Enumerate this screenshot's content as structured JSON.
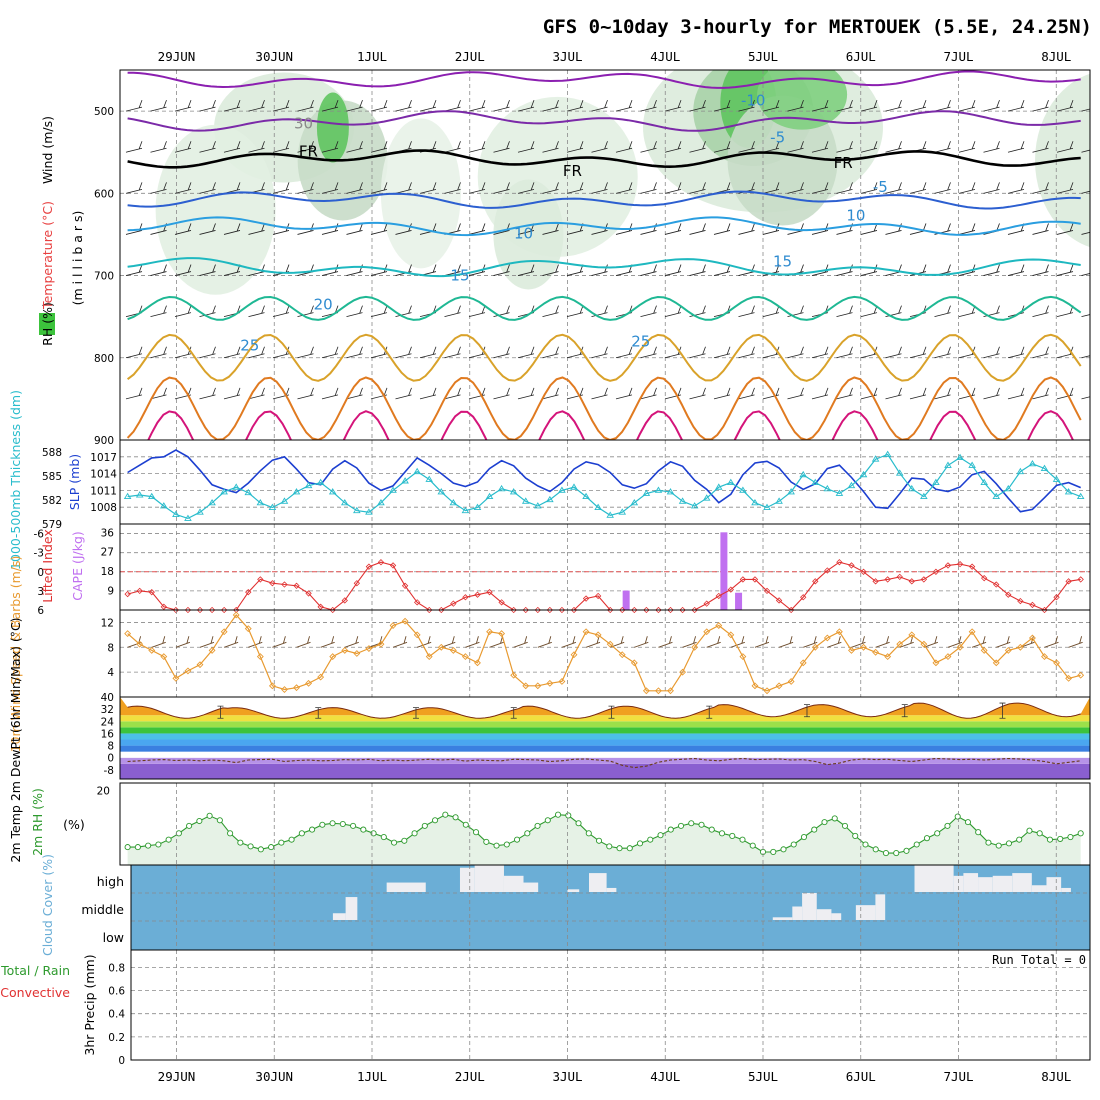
{
  "title": "GFS 0~10day 3-hourly for MERTOUEK (5.5E, 24.25N)",
  "colors": {
    "temp25": "#d9a22a",
    "temp30": "#e07a20",
    "temp35": "#d4147a",
    "temp20": "#1fb894",
    "temp15": "#1eb8c0",
    "temp10": "#2a9ee0",
    "temp5": "#2c5fd0",
    "tempm5": "#7b2aa8",
    "tempm10": "#8b1fb0",
    "slp": "#1c3fd0",
    "thickness": "#28bccc",
    "lifted": "#e03030",
    "cape": "#c070f0",
    "wind": "#e89a30",
    "rh": "#2e9a2e",
    "rhfill": "#e6f2e6",
    "cloudbg": "#6baed6",
    "cloud": "#eeeef2",
    "humid": "#3cc33c"
  },
  "chart_data": [
    {
      "panel": "upper-air",
      "type": "line",
      "x_ticks": [
        "29JUN",
        "30JUN",
        "1JUL",
        "2JUL",
        "3JUL",
        "4JUL",
        "5JUL",
        "6JUL",
        "7JUL",
        "8JUL"
      ],
      "ylabel": "(m i l l i b a r s)",
      "legend": [
        "RH (%)",
        "Temperature (°C)",
        "Wind (m/s)"
      ],
      "y_ticks": [
        500,
        600,
        700,
        800,
        900
      ],
      "ylim": [
        900,
        450
      ],
      "isotherm_labels": [
        {
          "text": "-10",
          "day": 5.9,
          "p": 487
        },
        {
          "text": "-5",
          "day": 6.15,
          "p": 532
        },
        {
          "text": "FR",
          "day": 1.35,
          "p": 549
        },
        {
          "text": "FR",
          "day": 4.05,
          "p": 573
        },
        {
          "text": "FR",
          "day": 6.82,
          "p": 563
        },
        {
          "text": "-5",
          "day": 7.2,
          "p": 592
        },
        {
          "text": "10",
          "day": 6.95,
          "p": 627
        },
        {
          "text": "10",
          "day": 3.55,
          "p": 649
        },
        {
          "text": "15",
          "day": 6.2,
          "p": 683
        },
        {
          "text": "15",
          "day": 2.9,
          "p": 700
        },
        {
          "text": "20",
          "day": 1.5,
          "p": 735
        },
        {
          "text": "25",
          "day": 0.75,
          "p": 785
        },
        {
          "text": "25",
          "day": 4.75,
          "p": 780
        },
        {
          "text": "30",
          "day": 1.3,
          "p": 515
        }
      ],
      "series": [
        {
          "name": "-10",
          "color_key": "tempm10",
          "base": 462,
          "amp": 8,
          "mids": 462
        },
        {
          "name": "-5",
          "color_key": "tempm5",
          "base": 512,
          "amp": 10
        },
        {
          "name": "FR",
          "color_key": "freeze",
          "base": 558,
          "amp": 8
        },
        {
          "name": "5",
          "color_key": "temp5",
          "base": 608,
          "amp": 8
        },
        {
          "name": "10",
          "color_key": "temp10",
          "base": 640,
          "amp": 8
        },
        {
          "name": "15",
          "color_key": "temp15",
          "base": 690,
          "amp": 10
        },
        {
          "name": "20",
          "color_key": "temp20",
          "base": 740,
          "amp": 14
        },
        {
          "name": "25",
          "color_key": "temp25",
          "base": 800,
          "amp": 28
        },
        {
          "name": "30",
          "color_key": "temp30",
          "base": 862,
          "amp": 38
        },
        {
          "name": "35",
          "color_key": "temp35",
          "base": 905,
          "amp": 40
        }
      ]
    },
    {
      "panel": "slp-thickness",
      "type": "line",
      "ylabel_left": "1000-500mb Thickness (dm)",
      "ylabel_right": "SLP (mb)",
      "thickness_ticks": [
        579,
        582,
        585,
        588
      ],
      "slp_ticks": [
        1008,
        1011,
        1014,
        1017
      ],
      "slp_ylim": [
        1005,
        1020
      ],
      "slp": [
        1014.2,
        1015.5,
        1016.8,
        1017.0,
        1018.2,
        1017.0,
        1014.6,
        1012.0,
        1011.2,
        1010.6,
        1012.3,
        1014.5,
        1016.4,
        1017.0,
        1014.8,
        1012.4,
        1012.0,
        1014.8,
        1016.3,
        1015.0,
        1012.3,
        1011.0,
        1011.8,
        1014.3,
        1016.8,
        1015.5,
        1014.0,
        1012.3,
        1011.7,
        1012.5,
        1014.9,
        1016.3,
        1015.4,
        1013.2,
        1011.8,
        1010.8,
        1012.4,
        1014.8,
        1016.1,
        1015.6,
        1014.2,
        1012.0,
        1011.4,
        1012.2,
        1014.5,
        1016.1,
        1015.3,
        1012.8,
        1011.2,
        1008.8,
        1010.3,
        1013.8,
        1015.9,
        1016.2,
        1015.0,
        1012.5,
        1011.2,
        1012.2,
        1014.9,
        1015.5,
        1013.3,
        1010.8,
        1008.0,
        1007.8,
        1010.4,
        1013.2,
        1013.0,
        1011.2,
        1010.8,
        1011.6,
        1013.8,
        1014.4,
        1012.2,
        1009.6,
        1007.2,
        1007.6,
        1009.7,
        1011.9,
        1012.4,
        1011.5
      ],
      "thickness_norm": [
        0.3,
        0.32,
        0.3,
        0.18,
        0.07,
        0.02,
        0.1,
        0.22,
        0.36,
        0.42,
        0.35,
        0.22,
        0.16,
        0.24,
        0.36,
        0.44,
        0.48,
        0.36,
        0.22,
        0.12,
        0.1,
        0.22,
        0.38,
        0.5,
        0.62,
        0.52,
        0.36,
        0.22,
        0.12,
        0.16,
        0.3,
        0.4,
        0.36,
        0.24,
        0.18,
        0.26,
        0.38,
        0.42,
        0.3,
        0.16,
        0.06,
        0.1,
        0.22,
        0.34,
        0.38,
        0.36,
        0.24,
        0.18,
        0.28,
        0.42,
        0.48,
        0.38,
        0.22,
        0.16,
        0.24,
        0.36,
        0.58,
        0.48,
        0.4,
        0.34,
        0.44,
        0.58,
        0.78,
        0.84,
        0.6,
        0.4,
        0.3,
        0.48,
        0.7,
        0.8,
        0.7,
        0.48,
        0.3,
        0.4,
        0.62,
        0.72,
        0.66,
        0.52,
        0.36,
        0.3
      ]
    },
    {
      "panel": "lifted-cape",
      "type": "line",
      "ylabel_left": "Lifted Index",
      "ylabel_right": "CAPE (J/kg)",
      "li_ticks": [
        -6,
        -3,
        0,
        3,
        6
      ],
      "cape_ticks": [
        9,
        18,
        27,
        36
      ],
      "li_ylim": [
        6,
        -7.5
      ],
      "lifted_index": [
        3.5,
        3.0,
        3.2,
        5.5,
        6.0,
        6.0,
        6.0,
        6.0,
        6.0,
        6.0,
        3.2,
        1.2,
        1.8,
        2.0,
        2.2,
        3.4,
        5.5,
        6.0,
        4.5,
        1.8,
        -0.8,
        -1.5,
        -1.0,
        2.2,
        4.8,
        6.0,
        6.0,
        5.0,
        4.0,
        3.6,
        3.2,
        4.8,
        6.0,
        6.0,
        6.0,
        6.0,
        6.0,
        6.0,
        4.2,
        3.8,
        6.0,
        6.0,
        6.0,
        6.0,
        6.0,
        6.0,
        6.0,
        6.0,
        5.0,
        3.8,
        2.8,
        1.2,
        1.2,
        3.0,
        4.5,
        6.0,
        4.0,
        1.5,
        -0.2,
        -1.5,
        -1.0,
        0.0,
        1.5,
        1.2,
        0.8,
        1.5,
        1.2,
        0.0,
        -1.0,
        -1.2,
        -0.8,
        1.0,
        2.0,
        3.6,
        4.6,
        5.2,
        6.0,
        4.0,
        1.5,
        1.2
      ],
      "cape_day": [
        4.6,
        5.6,
        5.75
      ],
      "cape": [
        9,
        36,
        8
      ]
    },
    {
      "panel": "wind10m",
      "type": "line",
      "ylabel": "10m Wind Speed & Barbs (m/s)",
      "y_ticks": [
        4,
        8,
        12
      ],
      "ylim": [
        0,
        14
      ],
      "wind_speed": [
        10.2,
        8.5,
        7.5,
        6.5,
        3.0,
        4.2,
        5.2,
        7.5,
        10.5,
        13.2,
        11.0,
        6.5,
        1.8,
        1.2,
        1.5,
        2.2,
        3.2,
        6.5,
        7.5,
        7.0,
        7.8,
        8.5,
        11.5,
        12.2,
        10.0,
        6.5,
        8.0,
        7.5,
        6.5,
        5.5,
        10.5,
        10.2,
        3.5,
        1.8,
        1.8,
        2.2,
        2.5,
        6.8,
        10.5,
        10.0,
        8.5,
        6.8,
        5.5,
        1.0,
        1.0,
        1.0,
        4.0,
        8.0,
        10.5,
        11.5,
        10.0,
        6.5,
        1.8,
        1.0,
        1.8,
        2.5,
        5.5,
        8.0,
        9.5,
        10.5,
        7.5,
        8.0,
        7.2,
        6.5,
        8.5,
        10.0,
        8.5,
        5.5,
        6.5,
        8.0,
        10.5,
        7.5,
        5.5,
        7.5,
        8.0,
        9.5,
        6.5,
        5.5,
        3.0,
        3.5
      ]
    },
    {
      "panel": "temp2m",
      "type": "area",
      "ylabel": "2m Temp 2m DewPt (6hr Min/Max) (°C)",
      "y_ticks": [
        -8,
        0,
        8,
        16,
        24,
        32,
        40
      ],
      "ylim": [
        -14,
        40
      ],
      "band_levels": [
        -4,
        0,
        4,
        8,
        12,
        16,
        20,
        24,
        28
      ],
      "temp_min": [
        26,
        26,
        26,
        26,
        26,
        26,
        27,
        27,
        26,
        27
      ],
      "temp_max": [
        34,
        33,
        33,
        33,
        34,
        34,
        35,
        35,
        36,
        36
      ],
      "dewpt": [
        -2.5,
        -2.0,
        -1.5,
        -1.2,
        -1.8,
        -1.5,
        -2.0,
        -1.5,
        -2.0,
        -3.2,
        -1.5,
        -1.2,
        -1.0,
        -2.5,
        -1.8,
        -1.5,
        -2.0,
        -1.8,
        -1.2,
        -1.5,
        -1.0,
        -2.0,
        -1.5,
        -2.0,
        -1.5,
        -1.0,
        -1.5,
        -1.0,
        -2.2,
        -1.5,
        -1.8,
        -2.0,
        -1.0,
        -1.2,
        -1.5,
        -2.5,
        -2.0,
        -1.0,
        -0.8,
        -1.5,
        -2.2,
        -5.0,
        -6.5,
        -5.5,
        -3.0,
        -1.5,
        -1.0,
        -0.5,
        -1.5,
        -2.0,
        -1.0,
        -0.5,
        -1.2,
        -1.0,
        -0.8,
        -1.5,
        -1.2,
        -2.5,
        -4.5,
        -3.5,
        -1.5,
        -0.8,
        -1.2,
        -1.0,
        -1.8,
        -2.5,
        -1.5,
        -0.5,
        -0.8,
        -1.2,
        -1.0,
        -1.5,
        -1.0,
        -0.5,
        -0.8,
        -1.5,
        -2.5,
        -4.0,
        -3.0,
        -2.0
      ]
    },
    {
      "panel": "rh2m",
      "type": "area",
      "ylabel": "2m RH (%)",
      "y_ticks": [
        20
      ],
      "ylim": [
        0,
        22
      ],
      "rh": [
        4.8,
        4.8,
        5.2,
        5.5,
        6.8,
        8.5,
        10.5,
        11.8,
        13.2,
        12.0,
        8.5,
        6.0,
        5.0,
        4.2,
        4.8,
        6.0,
        6.8,
        8.5,
        9.5,
        10.8,
        11.2,
        11.0,
        10.5,
        9.5,
        8.5,
        7.5,
        6.0,
        6.5,
        8.5,
        10.5,
        12.0,
        13.5,
        12.8,
        10.8,
        8.8,
        6.2,
        5.2,
        5.5,
        6.8,
        8.5,
        10.5,
        12.0,
        13.5,
        13.3,
        11.2,
        8.5,
        6.5,
        5.0,
        4.5,
        4.5,
        5.8,
        6.8,
        8.0,
        9.5,
        10.5,
        11.2,
        10.8,
        9.5,
        8.5,
        7.8,
        6.8,
        5.2,
        3.5,
        3.5,
        4.2,
        5.5,
        7.5,
        9.5,
        11.5,
        12.5,
        10.5,
        7.8,
        5.5,
        4.2,
        3.2,
        3.2,
        3.8,
        5.5,
        7.2,
        8.5,
        10.5,
        13.0,
        11.5,
        8.8,
        6.0,
        5.2,
        5.8,
        6.8,
        9.2,
        8.5,
        6.8,
        7.0,
        7.5,
        8.5
      ]
    },
    {
      "panel": "cloud-cover",
      "type": "bar",
      "ylabel": "Cloud Cover (%)",
      "levels": [
        "high",
        "middle",
        "low"
      ],
      "high_bars": [
        {
          "from": 2.15,
          "to": 2.55,
          "value": 0.35
        },
        {
          "from": 2.9,
          "to": 3.05,
          "value": 0.9
        },
        {
          "from": 3.05,
          "to": 3.35,
          "value": 1.0
        },
        {
          "from": 3.35,
          "to": 3.55,
          "value": 0.6
        },
        {
          "from": 3.55,
          "to": 3.7,
          "value": 0.35
        },
        {
          "from": 4.0,
          "to": 4.12,
          "value": 0.1
        },
        {
          "from": 4.22,
          "to": 4.4,
          "value": 0.7
        },
        {
          "from": 4.4,
          "to": 4.5,
          "value": 0.15
        },
        {
          "from": 7.55,
          "to": 7.95,
          "value": 1.0
        },
        {
          "from": 7.95,
          "to": 8.05,
          "value": 0.6
        },
        {
          "from": 8.05,
          "to": 8.2,
          "value": 0.7
        },
        {
          "from": 8.2,
          "to": 8.35,
          "value": 0.55
        },
        {
          "from": 8.35,
          "to": 8.55,
          "value": 0.6
        },
        {
          "from": 8.55,
          "to": 8.75,
          "value": 0.7
        },
        {
          "from": 8.75,
          "to": 8.9,
          "value": 0.25
        },
        {
          "from": 8.9,
          "to": 9.05,
          "value": 0.55
        },
        {
          "from": 9.05,
          "to": 9.15,
          "value": 0.15
        }
      ],
      "middle_bars": [
        {
          "from": 1.6,
          "to": 1.73,
          "value": 0.25
        },
        {
          "from": 1.73,
          "to": 1.85,
          "value": 0.85
        },
        {
          "from": 6.1,
          "to": 6.3,
          "value": 0.1
        },
        {
          "from": 6.3,
          "to": 6.4,
          "value": 0.5
        },
        {
          "from": 6.4,
          "to": 6.55,
          "value": 1.0
        },
        {
          "from": 6.55,
          "to": 6.7,
          "value": 0.4
        },
        {
          "from": 6.7,
          "to": 6.8,
          "value": 0.25
        },
        {
          "from": 6.95,
          "to": 7.15,
          "value": 0.55
        },
        {
          "from": 7.15,
          "to": 7.25,
          "value": 0.95
        }
      ]
    },
    {
      "panel": "precip",
      "type": "bar",
      "ylabel": "3hr Precip (mm)",
      "legend": [
        "Total / Rain",
        "Convective"
      ],
      "annotation": "Run Total = 0",
      "y_ticks": [
        0,
        0.2,
        0.4,
        0.6,
        0.8
      ],
      "ylim": [
        0,
        0.95
      ],
      "values": []
    }
  ]
}
